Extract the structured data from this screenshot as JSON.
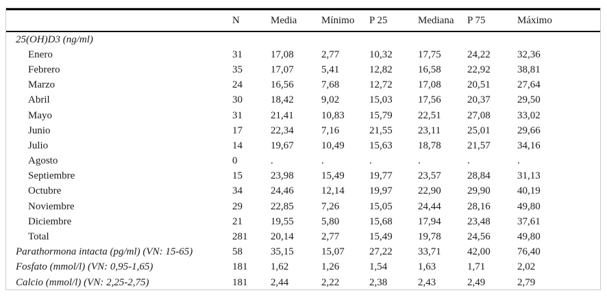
{
  "table": {
    "columns": [
      "",
      "N",
      "Media",
      "Mínimo",
      "P 25",
      "Mediana",
      "P 75",
      "Máximo"
    ],
    "column_keys": [
      "label",
      "n",
      "media",
      "minimo",
      "p25",
      "mediana",
      "p75",
      "maximo"
    ],
    "rows": [
      {
        "label": "25(OH)D3 (ng/ml)",
        "style": "section",
        "values": [
          "",
          "",
          "",
          "",
          "",
          "",
          ""
        ]
      },
      {
        "label": "Enero",
        "style": "indent",
        "values": [
          "31",
          "17,08",
          "2,77",
          "10,32",
          "17,75",
          "24,22",
          "32,36"
        ]
      },
      {
        "label": "Febrero",
        "style": "indent",
        "values": [
          "35",
          "17,07",
          "5,41",
          "12,82",
          "16,58",
          "22,92",
          "38,81"
        ]
      },
      {
        "label": "Marzo",
        "style": "indent",
        "values": [
          "24",
          "16,56",
          "7,68",
          "12,72",
          "17,08",
          "20,51",
          "27,64"
        ]
      },
      {
        "label": "Abril",
        "style": "indent",
        "values": [
          "30",
          "18,42",
          "9,02",
          "15,03",
          "17,56",
          "20,37",
          "29,50"
        ]
      },
      {
        "label": "Mayo",
        "style": "indent",
        "values": [
          "31",
          "21,41",
          "10,83",
          "15,79",
          "22,51",
          "27,08",
          "33,02"
        ]
      },
      {
        "label": "Junio",
        "style": "indent",
        "values": [
          "17",
          "22,34",
          "7,16",
          "21,55",
          "23,11",
          "25,01",
          "29,66"
        ]
      },
      {
        "label": "Julio",
        "style": "indent",
        "values": [
          "14",
          "19,67",
          "10,49",
          "15,63",
          "18,78",
          "21,57",
          "34,16"
        ]
      },
      {
        "label": "Agosto",
        "style": "indent",
        "n_bold": true,
        "values": [
          "0",
          ".",
          ".",
          ".",
          ".",
          ".",
          "."
        ]
      },
      {
        "label": "Septiembre",
        "style": "indent",
        "values": [
          "15",
          "23,98",
          "15,49",
          "19,77",
          "23,57",
          "28,84",
          "31,13"
        ]
      },
      {
        "label": "Octubre",
        "style": "indent",
        "values": [
          "34",
          "24,46",
          "12,14",
          "19,97",
          "22,90",
          "29,90",
          "40,19"
        ]
      },
      {
        "label": "Noviembre",
        "style": "indent",
        "values": [
          "29",
          "22,85",
          "7,26",
          "15,05",
          "24,44",
          "28,16",
          "49,80"
        ]
      },
      {
        "label": "Diciembre",
        "style": "indent",
        "values": [
          "21",
          "19,55",
          "5,80",
          "15,68",
          "17,94",
          "23,48",
          "37,61"
        ]
      },
      {
        "label": "Total",
        "style": "indent",
        "values": [
          "281",
          "20,14",
          "2,77",
          "15,49",
          "19,78",
          "24,56",
          "49,80"
        ]
      },
      {
        "label": "Parathormona intacta (pg/ml) (VN: 15-65)",
        "style": "section",
        "values": [
          "58",
          "35,15",
          "15,07",
          "27,22",
          "33,71",
          "42,00",
          "76,40"
        ]
      },
      {
        "label": "Fosfato (mmol/l) (VN: 0,95-1,65)",
        "style": "section",
        "values": [
          "181",
          "1,62",
          "1,26",
          "1,54",
          "1,63",
          "1,71",
          "2,02"
        ]
      },
      {
        "label": "Calcio (mmol/l) (VN: 2,25-2,75)",
        "style": "section",
        "values": [
          "181",
          "2,44",
          "2,22",
          "2,38",
          "2,43",
          "2,49",
          "2,79"
        ]
      }
    ]
  },
  "colors": {
    "background": "#ffffff",
    "text": "#1a1a1a",
    "rule": "#000000",
    "frame": "#c9c9c9"
  }
}
